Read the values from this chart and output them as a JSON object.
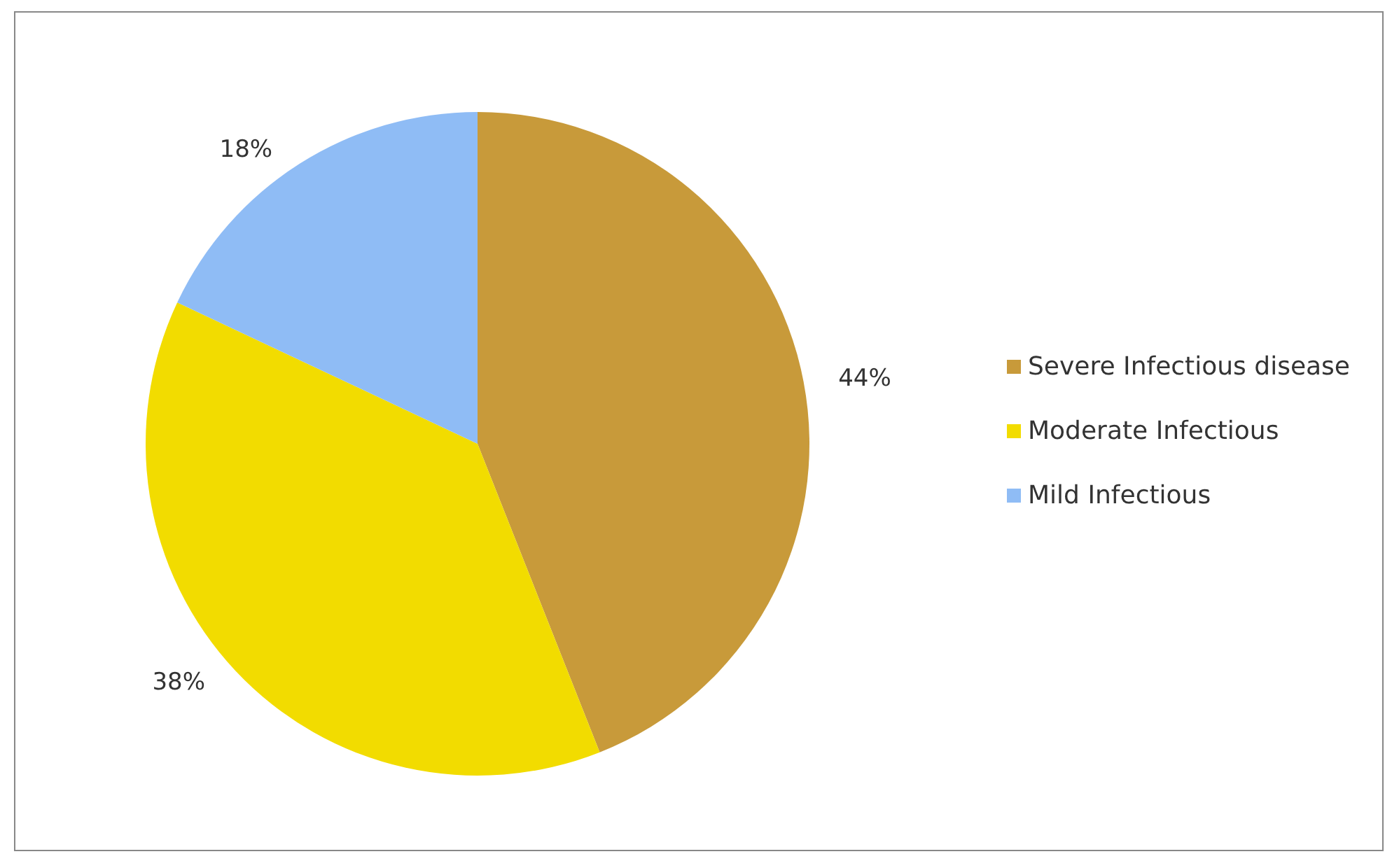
{
  "chart_data": {
    "type": "pie",
    "categories": [
      "Severe Infectious disease",
      "Moderate Infectious",
      "Mild Infectious"
    ],
    "values": [
      44,
      38,
      18
    ],
    "value_labels": [
      "44%",
      "38%",
      "18%"
    ],
    "colors": [
      "#c89a3a",
      "#f2dc00",
      "#8fbcf5"
    ],
    "legend": "right"
  }
}
